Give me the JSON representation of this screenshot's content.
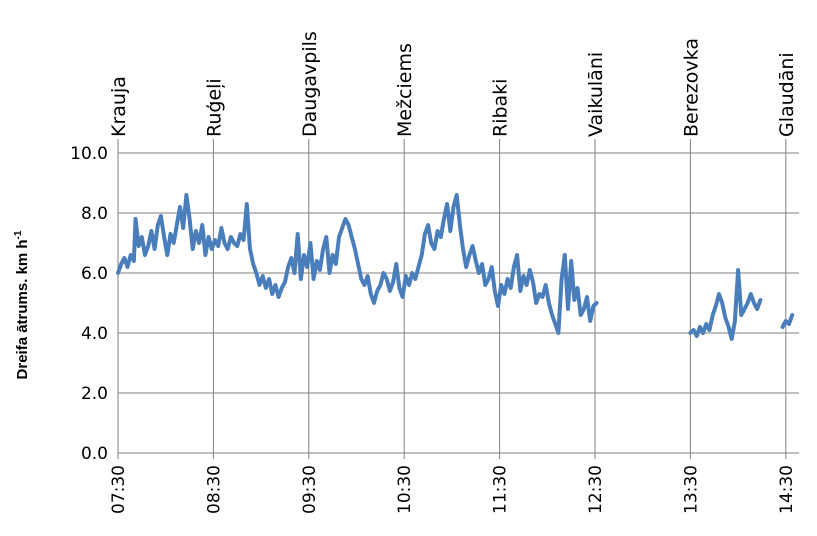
{
  "chart_data": {
    "type": "line",
    "ylabel": "Dreifa ātrums. km h",
    "ylabel_superscript": "-1",
    "ylim": [
      0,
      10
    ],
    "yticks": [
      {
        "value": 0,
        "label": "0.0"
      },
      {
        "value": 2,
        "label": "2.0"
      },
      {
        "value": 4,
        "label": "4.0"
      },
      {
        "value": 6,
        "label": "6.0"
      },
      {
        "value": 8,
        "label": "8.0"
      },
      {
        "value": 10,
        "label": "10.0"
      }
    ],
    "xlim": [
      "07:30",
      "14:36"
    ],
    "xticks": [
      "07:30",
      "08:30",
      "09:30",
      "10:30",
      "11:30",
      "12:30",
      "13:30",
      "14:30"
    ],
    "locations": [
      {
        "name": "Krauja",
        "time": "07:30"
      },
      {
        "name": "Ruģeļi",
        "time": "08:30"
      },
      {
        "name": "Daugavpils",
        "time": "09:30"
      },
      {
        "name": "Mežciems",
        "time": "10:30"
      },
      {
        "name": "Ribaki",
        "time": "11:30"
      },
      {
        "name": "Vaikulāni",
        "time": "12:30"
      },
      {
        "name": "Berezovka",
        "time": "13:30"
      },
      {
        "name": "Glaudāni",
        "time": "14:30"
      }
    ],
    "grid": true,
    "line_color": "#4a7ebb",
    "series": [
      {
        "segments": [
          {
            "t": [
              "07:30",
              "07:32",
              "07:34",
              "07:36",
              "07:38",
              "07:40",
              "07:41",
              "07:43",
              "07:45",
              "07:47",
              "07:49",
              "07:51",
              "07:53",
              "07:55",
              "07:57",
              "07:59",
              "08:01",
              "08:03",
              "08:05",
              "08:07",
              "08:09",
              "08:11",
              "08:13",
              "08:15",
              "08:17",
              "08:19",
              "08:21",
              "08:23",
              "08:25",
              "08:27",
              "08:29",
              "08:31",
              "08:33",
              "08:35",
              "08:37",
              "08:39",
              "08:41",
              "08:43",
              "08:45",
              "08:47",
              "08:49",
              "08:51",
              "08:53",
              "08:55",
              "08:57",
              "08:59",
              "09:01",
              "09:03",
              "09:05",
              "09:07",
              "09:09",
              "09:11",
              "09:13",
              "09:15",
              "09:17",
              "09:19",
              "09:21",
              "09:23",
              "09:25",
              "09:27",
              "09:29",
              "09:31",
              "09:33",
              "09:35",
              "09:37",
              "09:39",
              "09:41",
              "09:43",
              "09:45",
              "09:47",
              "09:49",
              "09:51",
              "09:53",
              "09:55",
              "09:57",
              "09:59",
              "10:01",
              "10:03",
              "10:05",
              "10:07",
              "10:09",
              "10:11",
              "10:13",
              "10:15",
              "10:17",
              "10:19",
              "10:21",
              "10:23",
              "10:25",
              "10:27",
              "10:29",
              "10:31",
              "10:33",
              "10:35",
              "10:37",
              "10:39",
              "10:41",
              "10:43",
              "10:45",
              "10:47",
              "10:49",
              "10:51",
              "10:53",
              "10:55",
              "10:57",
              "10:59",
              "11:01",
              "11:03",
              "11:05",
              "11:07",
              "11:09",
              "11:11",
              "11:13",
              "11:15",
              "11:17",
              "11:19",
              "11:21",
              "11:23",
              "11:25",
              "11:27",
              "11:29",
              "11:31",
              "11:33",
              "11:35",
              "11:37",
              "11:39",
              "11:41",
              "11:43",
              "11:45",
              "11:47",
              "11:49",
              "11:51",
              "11:53",
              "11:55",
              "11:57",
              "11:59",
              "12:01",
              "12:03",
              "12:05",
              "12:07",
              "12:09",
              "12:11",
              "12:13",
              "12:15",
              "12:17",
              "12:19",
              "12:21",
              "12:23",
              "12:25",
              "12:27",
              "12:29",
              "12:31"
            ],
            "v": [
              6.0,
              6.3,
              6.5,
              6.2,
              6.6,
              6.4,
              7.8,
              6.9,
              7.2,
              6.6,
              6.9,
              7.4,
              6.8,
              7.6,
              7.9,
              7.2,
              6.6,
              7.3,
              7.0,
              7.6,
              8.2,
              7.5,
              8.6,
              7.8,
              6.8,
              7.4,
              7.0,
              7.6,
              6.6,
              7.2,
              6.8,
              7.1,
              6.9,
              7.5,
              7.0,
              6.8,
              7.2,
              7.0,
              6.9,
              7.3,
              7.1,
              8.3,
              6.8,
              6.3,
              6.0,
              5.6,
              5.9,
              5.5,
              5.8,
              5.3,
              5.6,
              5.2,
              5.5,
              5.7,
              6.2,
              6.5,
              6.0,
              7.3,
              5.8,
              6.6,
              6.2,
              7.0,
              5.8,
              6.4,
              6.1,
              6.8,
              7.2,
              6.0,
              6.6,
              6.3,
              7.2,
              7.5,
              7.8,
              7.6,
              7.2,
              6.8,
              6.3,
              5.8,
              5.6,
              5.9,
              5.3,
              5.0,
              5.4,
              5.6,
              6.0,
              5.8,
              5.4,
              5.7,
              6.3,
              5.5,
              5.2,
              5.9,
              5.6,
              6.0,
              5.8,
              6.2,
              6.6,
              7.3,
              7.6,
              7.0,
              6.8,
              7.4,
              7.2,
              7.8,
              8.3,
              7.4,
              8.2,
              8.6,
              7.6,
              6.8,
              6.2,
              6.6,
              6.9,
              6.4,
              6.0,
              6.3,
              5.6,
              5.8,
              6.2,
              5.4,
              4.9,
              5.6,
              5.3,
              5.8,
              5.5,
              6.2,
              6.6,
              5.4,
              5.9,
              5.6,
              6.1,
              5.7,
              5.0,
              5.3,
              5.2,
              5.6,
              5.0,
              4.6,
              4.3,
              4.0,
              5.8,
              6.6,
              4.8,
              6.4,
              5.1,
              5.5,
              4.6,
              4.8,
              5.2,
              4.4,
              4.9,
              5.0,
              4.8,
              4.9
            ]
          },
          {
            "t": [
              "13:30",
              "13:32",
              "13:34",
              "13:36",
              "13:38",
              "13:40",
              "13:42",
              "13:44",
              "13:46",
              "13:48",
              "13:50",
              "13:52",
              "13:54",
              "13:56",
              "13:58",
              "14:00",
              "14:02",
              "14:04",
              "14:06",
              "14:08",
              "14:10",
              "14:12",
              "14:14"
            ],
            "v": [
              4.0,
              4.1,
              3.9,
              4.2,
              4.0,
              4.3,
              4.1,
              4.6,
              4.9,
              5.3,
              5.0,
              4.5,
              4.2,
              3.8,
              4.4,
              6.1,
              4.6,
              4.8,
              5.0,
              5.3,
              5.0,
              4.8,
              5.1
            ]
          },
          {
            "t": [
              "14:28",
              "14:30",
              "14:32",
              "14:34"
            ],
            "v": [
              4.2,
              4.4,
              4.3,
              4.6
            ]
          }
        ]
      }
    ]
  }
}
